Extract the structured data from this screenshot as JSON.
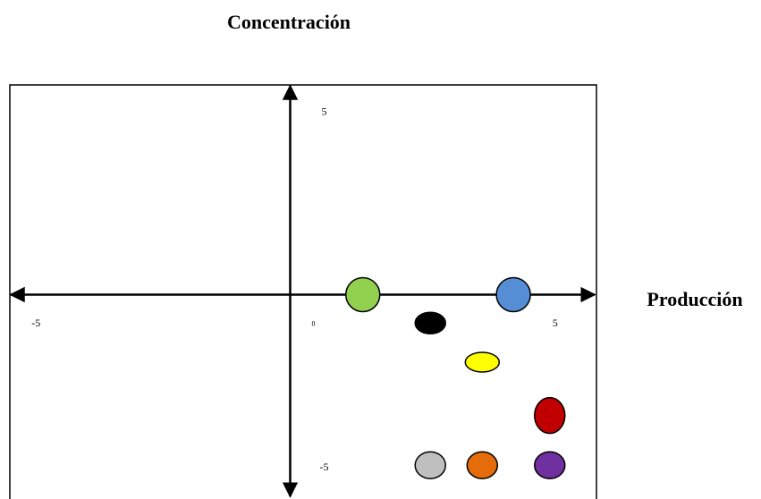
{
  "chart_data": {
    "type": "scatter",
    "y_label": "Concentración",
    "x_label": "Producción",
    "x": [
      1.4,
      4.3,
      2.7,
      3.7,
      5,
      2.7,
      3.7,
      5
    ],
    "values": [
      0,
      0,
      -0.8,
      -1.9,
      -3.4,
      -4.8,
      -4.8,
      -4.8
    ],
    "colors": [
      "#92d050",
      "#558ed5",
      "#000000",
      "#ffff00",
      "#c00000",
      "#bfbfbf",
      "#e46c0a",
      "#7030a0"
    ],
    "xlim": [
      -5.4,
      5.9
    ],
    "ylim": [
      -5.75,
      5.9
    ],
    "xticks": [
      -5,
      0,
      5
    ],
    "yticks": [
      -5,
      5
    ]
  }
}
